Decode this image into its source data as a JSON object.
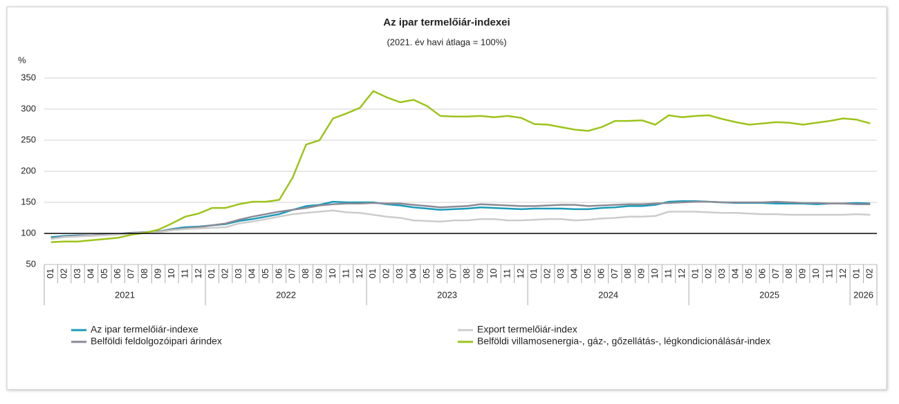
{
  "chart_data": {
    "type": "line",
    "title": "Az ipar termelőiár-indexei",
    "subtitle": "(2021. év havi átlaga = 100%)",
    "yunit": "%",
    "categories": [
      "01",
      "02",
      "03",
      "04",
      "05",
      "06",
      "07",
      "08",
      "09",
      "10",
      "11",
      "12",
      "01",
      "02",
      "03",
      "04",
      "05",
      "06",
      "07",
      "08",
      "09",
      "10",
      "11",
      "12",
      "01",
      "02",
      "03",
      "04",
      "05",
      "06",
      "07",
      "08",
      "09",
      "10",
      "11",
      "12",
      "01",
      "02",
      "03",
      "04",
      "05",
      "06",
      "07",
      "08",
      "09",
      "10",
      "11",
      "12",
      "01",
      "02",
      "03",
      "04",
      "05",
      "06",
      "07",
      "08",
      "09",
      "10",
      "11",
      "12",
      "01",
      "02"
    ],
    "years": [
      "2021",
      "2022",
      "2023",
      "2024",
      "2025",
      "2026"
    ],
    "ylim": [
      50,
      350
    ],
    "yticks": [
      50,
      100,
      150,
      200,
      250,
      300,
      350
    ],
    "grid": true,
    "reference_line": 100,
    "series": [
      {
        "name": "Az ipar termelőiár-indexe",
        "color": "#1a9bb8",
        "values": [
          94,
          96,
          97,
          97,
          98,
          99,
          101,
          102,
          103,
          107,
          110,
          111,
          113,
          115,
          120,
          123,
          127,
          131,
          138,
          144,
          146,
          151,
          150,
          150,
          150,
          147,
          145,
          142,
          140,
          138,
          139,
          140,
          142,
          141,
          140,
          139,
          140,
          140,
          140,
          139,
          139,
          141,
          142,
          144,
          144,
          146,
          151,
          152,
          152,
          151,
          150,
          149,
          149,
          149,
          148,
          148,
          148,
          147,
          148,
          148,
          149,
          148
        ]
      },
      {
        "name": "Belföldi feldolgozóipari árindex",
        "color": "#8a8a96",
        "values": [
          92,
          95,
          96,
          97,
          98,
          99,
          101,
          102,
          103,
          106,
          108,
          110,
          113,
          116,
          122,
          127,
          131,
          135,
          138,
          141,
          145,
          147,
          148,
          148,
          149,
          148,
          148,
          146,
          144,
          142,
          143,
          144,
          147,
          146,
          145,
          144,
          144,
          145,
          146,
          146,
          144,
          145,
          146,
          147,
          147,
          148,
          149,
          150,
          151,
          151,
          150,
          150,
          150,
          150,
          151,
          150,
          149,
          149,
          148,
          148,
          147,
          147
        ]
      },
      {
        "name": "Export termelőiár-index",
        "color": "#cccccc",
        "values": [
          91,
          94,
          95,
          96,
          97,
          98,
          100,
          101,
          102,
          105,
          107,
          108,
          109,
          110,
          116,
          119,
          123,
          127,
          131,
          133,
          135,
          137,
          134,
          133,
          130,
          127,
          125,
          121,
          120,
          119,
          121,
          121,
          123,
          123,
          121,
          121,
          122,
          123,
          123,
          121,
          122,
          124,
          125,
          127,
          127,
          128,
          135,
          135,
          135,
          134,
          133,
          133,
          132,
          131,
          131,
          130,
          130,
          130,
          130,
          130,
          131,
          130
        ]
      },
      {
        "name": "Belföldi villamosenergia-, gáz-, gőzellátás-, légkondicionálásár-index",
        "color": "#9cc31a",
        "values": [
          86,
          87,
          87,
          89,
          91,
          93,
          98,
          101,
          106,
          116,
          127,
          132,
          141,
          141,
          147,
          151,
          151,
          154,
          190,
          243,
          250,
          285,
          293,
          302,
          329,
          319,
          311,
          315,
          305,
          289,
          288,
          288,
          289,
          287,
          289,
          286,
          276,
          275,
          271,
          267,
          265,
          271,
          281,
          281,
          282,
          275,
          290,
          287,
          289,
          290,
          284,
          279,
          275,
          277,
          279,
          278,
          275,
          278,
          281,
          285,
          283,
          277
        ]
      }
    ]
  }
}
